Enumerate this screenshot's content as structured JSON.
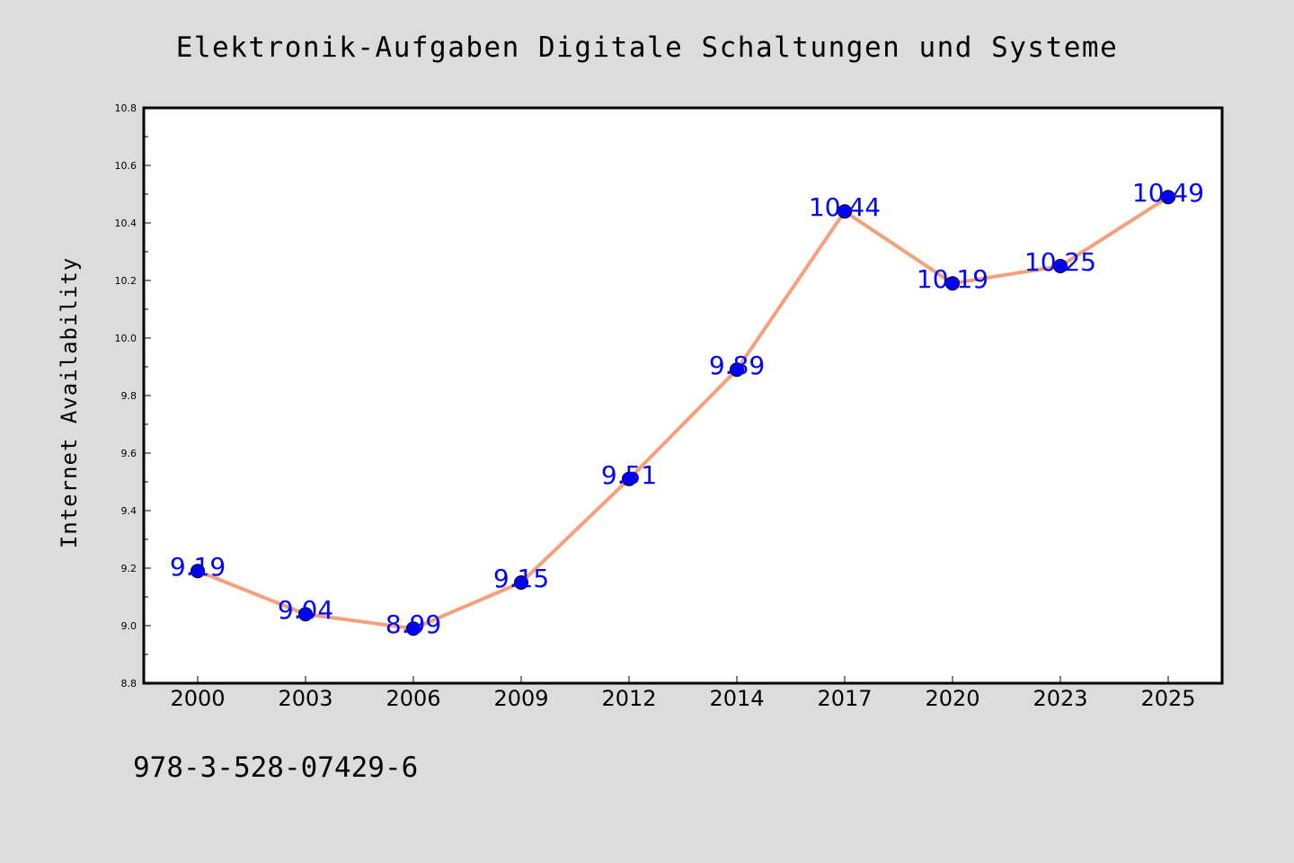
{
  "chart_data": {
    "type": "line",
    "title": "Elektronik-Aufgaben Digitale Schaltungen und Systeme",
    "xlabel": "",
    "ylabel": "Internet Availability",
    "categories": [
      "2000",
      "2003",
      "2006",
      "2009",
      "2012",
      "2014",
      "2017",
      "2020",
      "2023",
      "2025"
    ],
    "series": [
      {
        "values": [
          9.19,
          9.04,
          8.99,
          9.15,
          9.51,
          9.89,
          10.44,
          10.19,
          10.25,
          10.49
        ],
        "data_labels": [
          "9.19",
          "9.04",
          "8.99",
          "9.15",
          "9.51",
          "9.89",
          "10.44",
          "10.19",
          "10.25",
          "10.49"
        ],
        "line_color": "#f4a07c",
        "marker_color": "#0000ff",
        "label_color": "#0000ff"
      }
    ],
    "yticks": [
      "8.8",
      "9.0",
      "9.2",
      "9.4",
      "9.6",
      "9.8",
      "10.0",
      "10.2",
      "10.4",
      "10.6",
      "10.8"
    ],
    "ylim": [
      8.8,
      10.8
    ],
    "grid": false,
    "legend": "none"
  },
  "footer": {
    "code": "978-3-528-07429-6"
  },
  "colors": {
    "background": "#dcdcdc",
    "plot_background": "#ffffff",
    "axis": "#000000"
  }
}
